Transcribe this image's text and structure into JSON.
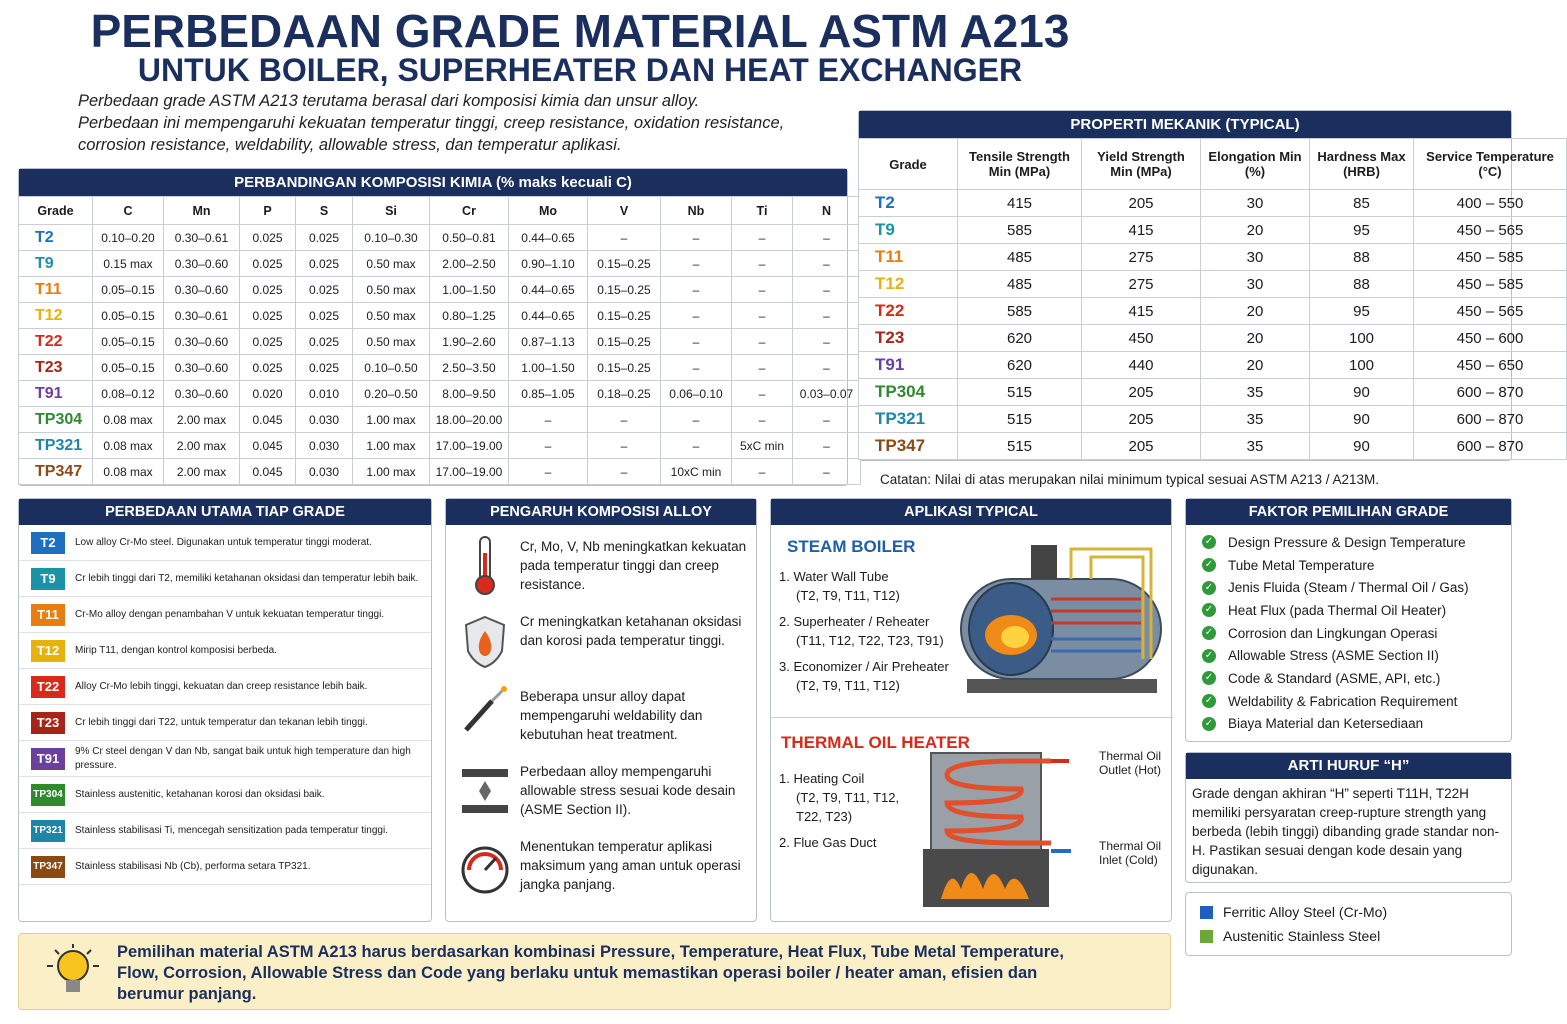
{
  "header": {
    "title": "PERBEDAAN GRADE MATERIAL ASTM A213",
    "subtitle": "UNTUK BOILER, SUPERHEATER DAN HEAT EXCHANGER",
    "intro": [
      "Perbedaan grade ASTM A213 terutama berasal dari komposisi kimia dan unsur alloy.",
      "Perbedaan ini mempengaruhi kekuatan temperatur tinggi, creep resistance, oxidation resistance,",
      "corrosion resistance, weldability, allowable stress, dan temperatur aplikasi."
    ]
  },
  "composition": {
    "title": "PERBANDINGAN KOMPOSISI KIMIA (% maks kecuali C)",
    "headers": [
      "Grade",
      "C",
      "Mn",
      "P",
      "S",
      "Si",
      "Cr",
      "Mo",
      "V",
      "Nb",
      "Ti",
      "N"
    ],
    "rows": [
      [
        "T2",
        "0.10–0.20",
        "0.30–0.61",
        "0.025",
        "0.025",
        "0.10–0.30",
        "0.50–0.81",
        "0.44–0.65",
        "–",
        "–",
        "–",
        "–"
      ],
      [
        "T9",
        "0.15 max",
        "0.30–0.60",
        "0.025",
        "0.025",
        "0.50 max",
        "2.00–2.50",
        "0.90–1.10",
        "0.15–0.25",
        "–",
        "–",
        "–"
      ],
      [
        "T11",
        "0.05–0.15",
        "0.30–0.60",
        "0.025",
        "0.025",
        "0.50 max",
        "1.00–1.50",
        "0.44–0.65",
        "0.15–0.25",
        "–",
        "–",
        "–"
      ],
      [
        "T12",
        "0.05–0.15",
        "0.30–0.61",
        "0.025",
        "0.025",
        "0.50 max",
        "0.80–1.25",
        "0.44–0.65",
        "0.15–0.25",
        "–",
        "–",
        "–"
      ],
      [
        "T22",
        "0.05–0.15",
        "0.30–0.60",
        "0.025",
        "0.025",
        "0.50 max",
        "1.90–2.60",
        "0.87–1.13",
        "0.15–0.25",
        "–",
        "–",
        "–"
      ],
      [
        "T23",
        "0.05–0.15",
        "0.30–0.60",
        "0.025",
        "0.025",
        "0.10–0.50",
        "2.50–3.50",
        "1.00–1.50",
        "0.15–0.25",
        "–",
        "–",
        "–"
      ],
      [
        "T91",
        "0.08–0.12",
        "0.30–0.60",
        "0.020",
        "0.010",
        "0.20–0.50",
        "8.00–9.50",
        "0.85–1.05",
        "0.18–0.25",
        "0.06–0.10",
        "–",
        "0.03–0.07"
      ],
      [
        "TP304",
        "0.08 max",
        "2.00 max",
        "0.045",
        "0.030",
        "1.00 max",
        "18.00–20.00",
        "–",
        "–",
        "–",
        "–",
        "–"
      ],
      [
        "TP321",
        "0.08 max",
        "2.00 max",
        "0.045",
        "0.030",
        "1.00 max",
        "17.00–19.00",
        "–",
        "–",
        "–",
        "5xC min",
        "–"
      ],
      [
        "TP347",
        "0.08 max",
        "2.00 max",
        "0.045",
        "0.030",
        "1.00 max",
        "17.00–19.00",
        "–",
        "–",
        "10xC min",
        "–",
        "–"
      ]
    ]
  },
  "mechanical": {
    "title": "PROPERTI MEKANIK (TYPICAL)",
    "headers": [
      "Grade",
      "Tensile Strength Min (MPa)",
      "Yield Strength Min (MPa)",
      "Elongation Min (%)",
      "Hardness Max (HRB)",
      "Service Temperature (°C)"
    ],
    "rows": [
      [
        "T2",
        "415",
        "205",
        "30",
        "85",
        "400 – 550"
      ],
      [
        "T9",
        "585",
        "415",
        "20",
        "95",
        "450 – 565"
      ],
      [
        "T11",
        "485",
        "275",
        "30",
        "88",
        "450 – 585"
      ],
      [
        "T12",
        "485",
        "275",
        "30",
        "88",
        "450 – 585"
      ],
      [
        "T22",
        "585",
        "415",
        "20",
        "95",
        "450 – 565"
      ],
      [
        "T23",
        "620",
        "450",
        "20",
        "100",
        "450 – 600"
      ],
      [
        "T91",
        "620",
        "440",
        "20",
        "100",
        "450 – 650"
      ],
      [
        "TP304",
        "515",
        "205",
        "35",
        "90",
        "600 – 870"
      ],
      [
        "TP321",
        "515",
        "205",
        "35",
        "90",
        "600 – 870"
      ],
      [
        "TP347",
        "515",
        "205",
        "35",
        "90",
        "600 – 870"
      ]
    ],
    "note": "Catatan: Nilai di atas merupakan nilai minimum typical sesuai ASTM A213 / A213M."
  },
  "differences": {
    "title": "PERBEDAAN UTAMA TIAP GRADE",
    "items": [
      {
        "grade": "T2",
        "color": "#1f6fc0",
        "text": "Low alloy Cr-Mo steel. Digunakan untuk temperatur tinggi moderat."
      },
      {
        "grade": "T9",
        "color": "#1b93a6",
        "text": "Cr lebih tinggi dari T2, memiliki ketahanan oksidasi dan temperatur lebih baik."
      },
      {
        "grade": "T11",
        "color": "#e67e10",
        "text": "Cr-Mo alloy dengan penambahan V untuk kekuatan temperatur tinggi."
      },
      {
        "grade": "T12",
        "color": "#e8b20e",
        "text": "Mirip T11, dengan kontrol komposisi berbeda."
      },
      {
        "grade": "T22",
        "color": "#d8291d",
        "text": "Alloy Cr-Mo lebih tinggi, kekuatan dan creep resistance lebih baik."
      },
      {
        "grade": "T23",
        "color": "#a8231a",
        "text": "Cr lebih tinggi dari T22, untuk temperatur dan tekanan lebih tinggi."
      },
      {
        "grade": "T91",
        "color": "#6b3f9e",
        "text": "9% Cr steel dengan V dan Nb, sangat baik untuk high temperature dan high pressure."
      },
      {
        "grade": "TP304",
        "color": "#2f8a2f",
        "text": "Stainless austenitic, ketahanan korosi dan oksidasi baik."
      },
      {
        "grade": "TP321",
        "color": "#1d86a8",
        "text": "Stainless stabilisasi Ti, mencegah sensitization pada temperatur tinggi."
      },
      {
        "grade": "TP347",
        "color": "#8a4a16",
        "text": "Stainless stabilisasi Nb (Cb), performa setara TP321."
      }
    ]
  },
  "alloy": {
    "title": "PENGARUH KOMPOSISI ALLOY",
    "items": [
      "Cr, Mo, V, Nb meningkatkan kekuatan pada temperatur tinggi dan creep resistance.",
      "Cr meningkatkan ketahanan oksidasi dan korosi pada temperatur tinggi.",
      "Beberapa unsur alloy dapat mempengaruhi weldability dan kebutuhan heat treatment.",
      "Perbedaan alloy mempengaruhi allowable stress sesuai kode desain (ASME Section II).",
      "Menentukan temperatur aplikasi maksimum yang aman untuk operasi jangka panjang."
    ]
  },
  "applications": {
    "title": "APLIKASI TYPICAL",
    "steam_boiler": {
      "heading": "STEAM BOILER",
      "items": [
        {
          "label": "1. Water Wall Tube",
          "grades": "(T2, T9, T11, T12)"
        },
        {
          "label": "2. Superheater / Reheater",
          "grades": "(T11, T12, T22, T23, T91)"
        },
        {
          "label": "3. Economizer / Air Preheater",
          "grades": "(T2, T9, T11, T12)"
        }
      ]
    },
    "thermal_oil_heater": {
      "heading": "THERMAL OIL HEATER",
      "items": [
        {
          "label": "1. Heating Coil",
          "grades": "(T2, T9, T11, T12, T22, T23)"
        },
        {
          "label": "2. Flue Gas Duct",
          "grades": ""
        }
      ],
      "outlet": "Thermal Oil Outlet (Hot)",
      "inlet": "Thermal Oil Inlet (Cold)"
    }
  },
  "factors": {
    "title": "FAKTOR PEMILIHAN GRADE",
    "items": [
      "Design Pressure & Design Temperature",
      "Tube Metal Temperature",
      "Jenis Fluida (Steam / Thermal Oil / Gas)",
      "Heat Flux (pada Thermal Oil Heater)",
      "Corrosion dan Lingkungan Operasi",
      "Allowable Stress (ASME Section II)",
      "Code & Standard (ASME, API, etc.)",
      "Weldability & Fabrication Requirement",
      "Biaya Material dan Ketersediaan"
    ]
  },
  "h_meaning": {
    "title": "ARTI HURUF “H”",
    "text": "Grade dengan akhiran “H” seperti T11H, T22H memiliki persyaratan creep-rupture strength yang berbeda (lebih tinggi) dibanding grade standar non-H. Pastikan sesuai dengan kode desain yang digunakan."
  },
  "legend": [
    {
      "label": "Ferritic Alloy Steel (Cr-Mo)",
      "color": "#1f5fc4"
    },
    {
      "label": "Austenitic Stainless Steel",
      "color": "#6aa83a"
    }
  ],
  "footer": "Pemilihan material ASTM A213 harus berdasarkan kombinasi Pressure, Temperature, Heat Flux, Tube Metal Temperature, Flow, Corrosion, Allowable Stress dan Code yang berlaku untuk memastikan operasi boiler / heater aman, efisien dan berumur panjang."
}
